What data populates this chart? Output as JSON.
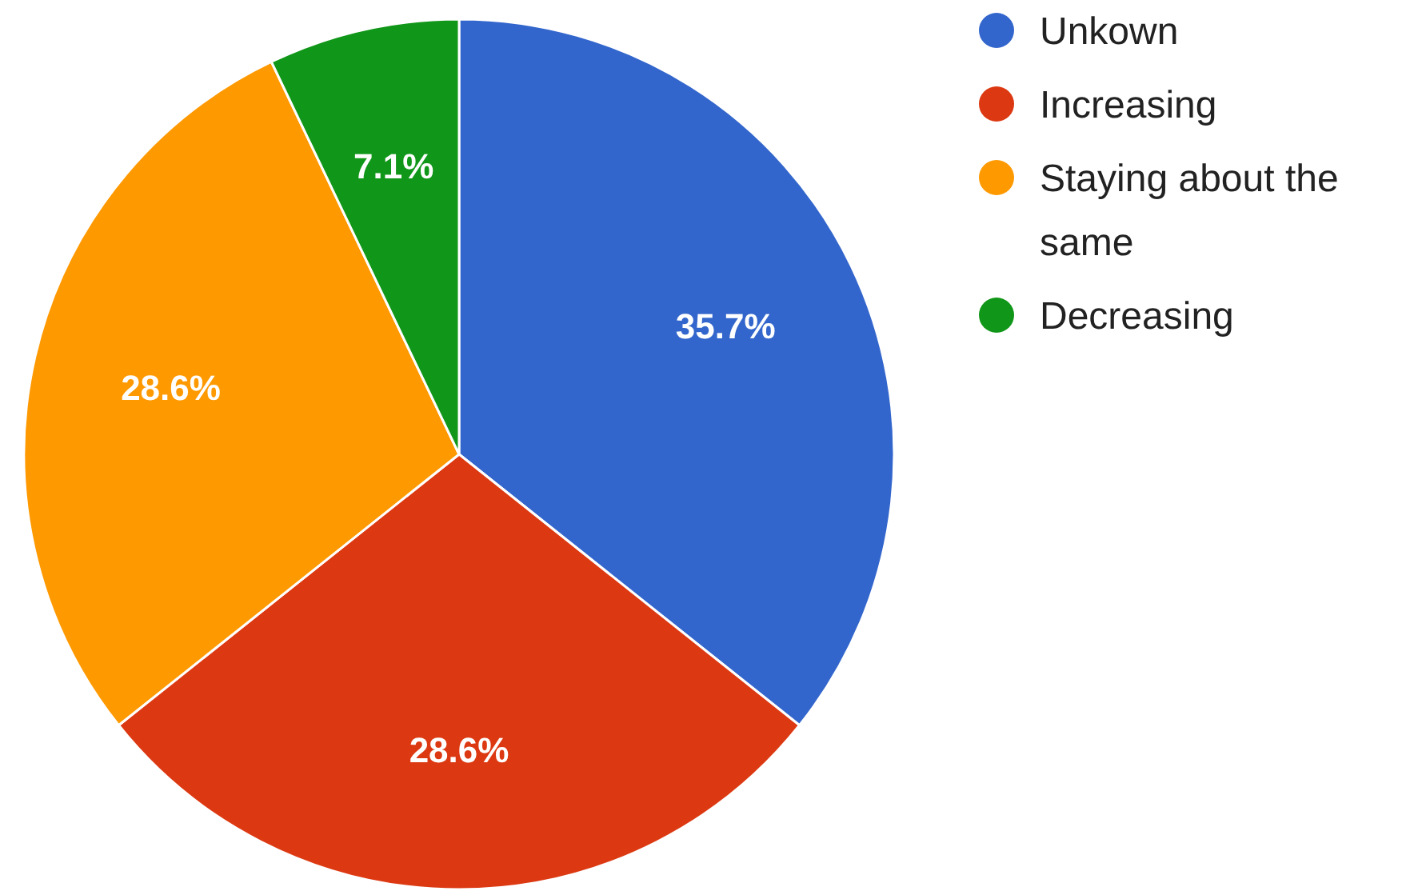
{
  "chart_data": {
    "type": "pie",
    "categories": [
      "Unkown",
      "Increasing",
      "Staying about the same",
      "Decreasing"
    ],
    "values": [
      35.7,
      28.6,
      28.6,
      7.1
    ],
    "colors": [
      "#3366cc",
      "#dc3912",
      "#ff9900",
      "#109618"
    ],
    "value_labels": [
      "35.7%",
      "28.6%",
      "28.6%",
      "7.1%"
    ],
    "legend": "top right"
  }
}
